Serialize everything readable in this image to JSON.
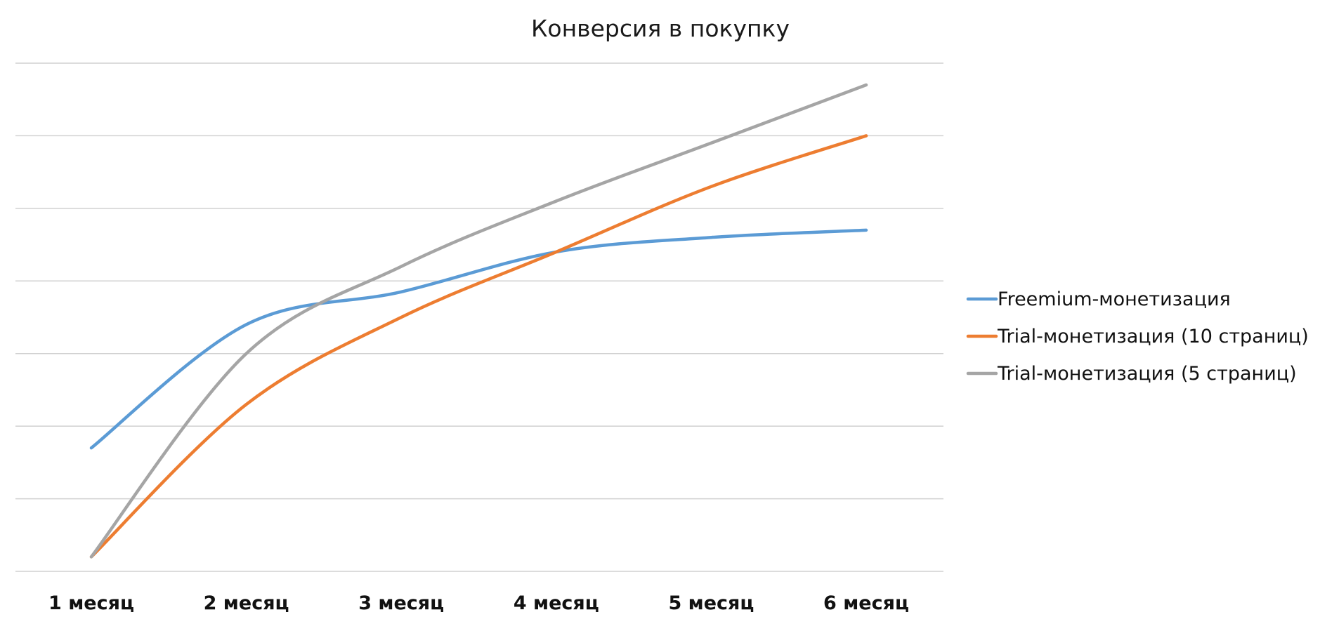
{
  "chart_data": {
    "type": "line",
    "title": "Конверсия в покупку",
    "xlabel": "",
    "ylabel": "",
    "categories": [
      "1 месяц",
      "2 месяц",
      "3 месяц",
      "4 месяц",
      "5 месяц",
      "6 месяц"
    ],
    "ylim": [
      0,
      7
    ],
    "y_gridlines": 8,
    "y_tick_labels_visible": false,
    "grid": true,
    "smooth": true,
    "legend": "right",
    "series": [
      {
        "name": "Freemium-монетизация",
        "color": "#5b9bd5",
        "values": [
          1.7,
          3.4,
          3.85,
          4.4,
          4.6,
          4.7
        ]
      },
      {
        "name": "Trial-монетизация (10 страниц)",
        "color": "#ed7d31",
        "values": [
          0.2,
          2.3,
          3.5,
          4.4,
          5.3,
          6.0
        ]
      },
      {
        "name": "Trial-монетизация (5 страниц)",
        "color": "#a5a5a5",
        "values": [
          0.2,
          3.0,
          4.2,
          5.1,
          5.9,
          6.7
        ]
      }
    ]
  }
}
